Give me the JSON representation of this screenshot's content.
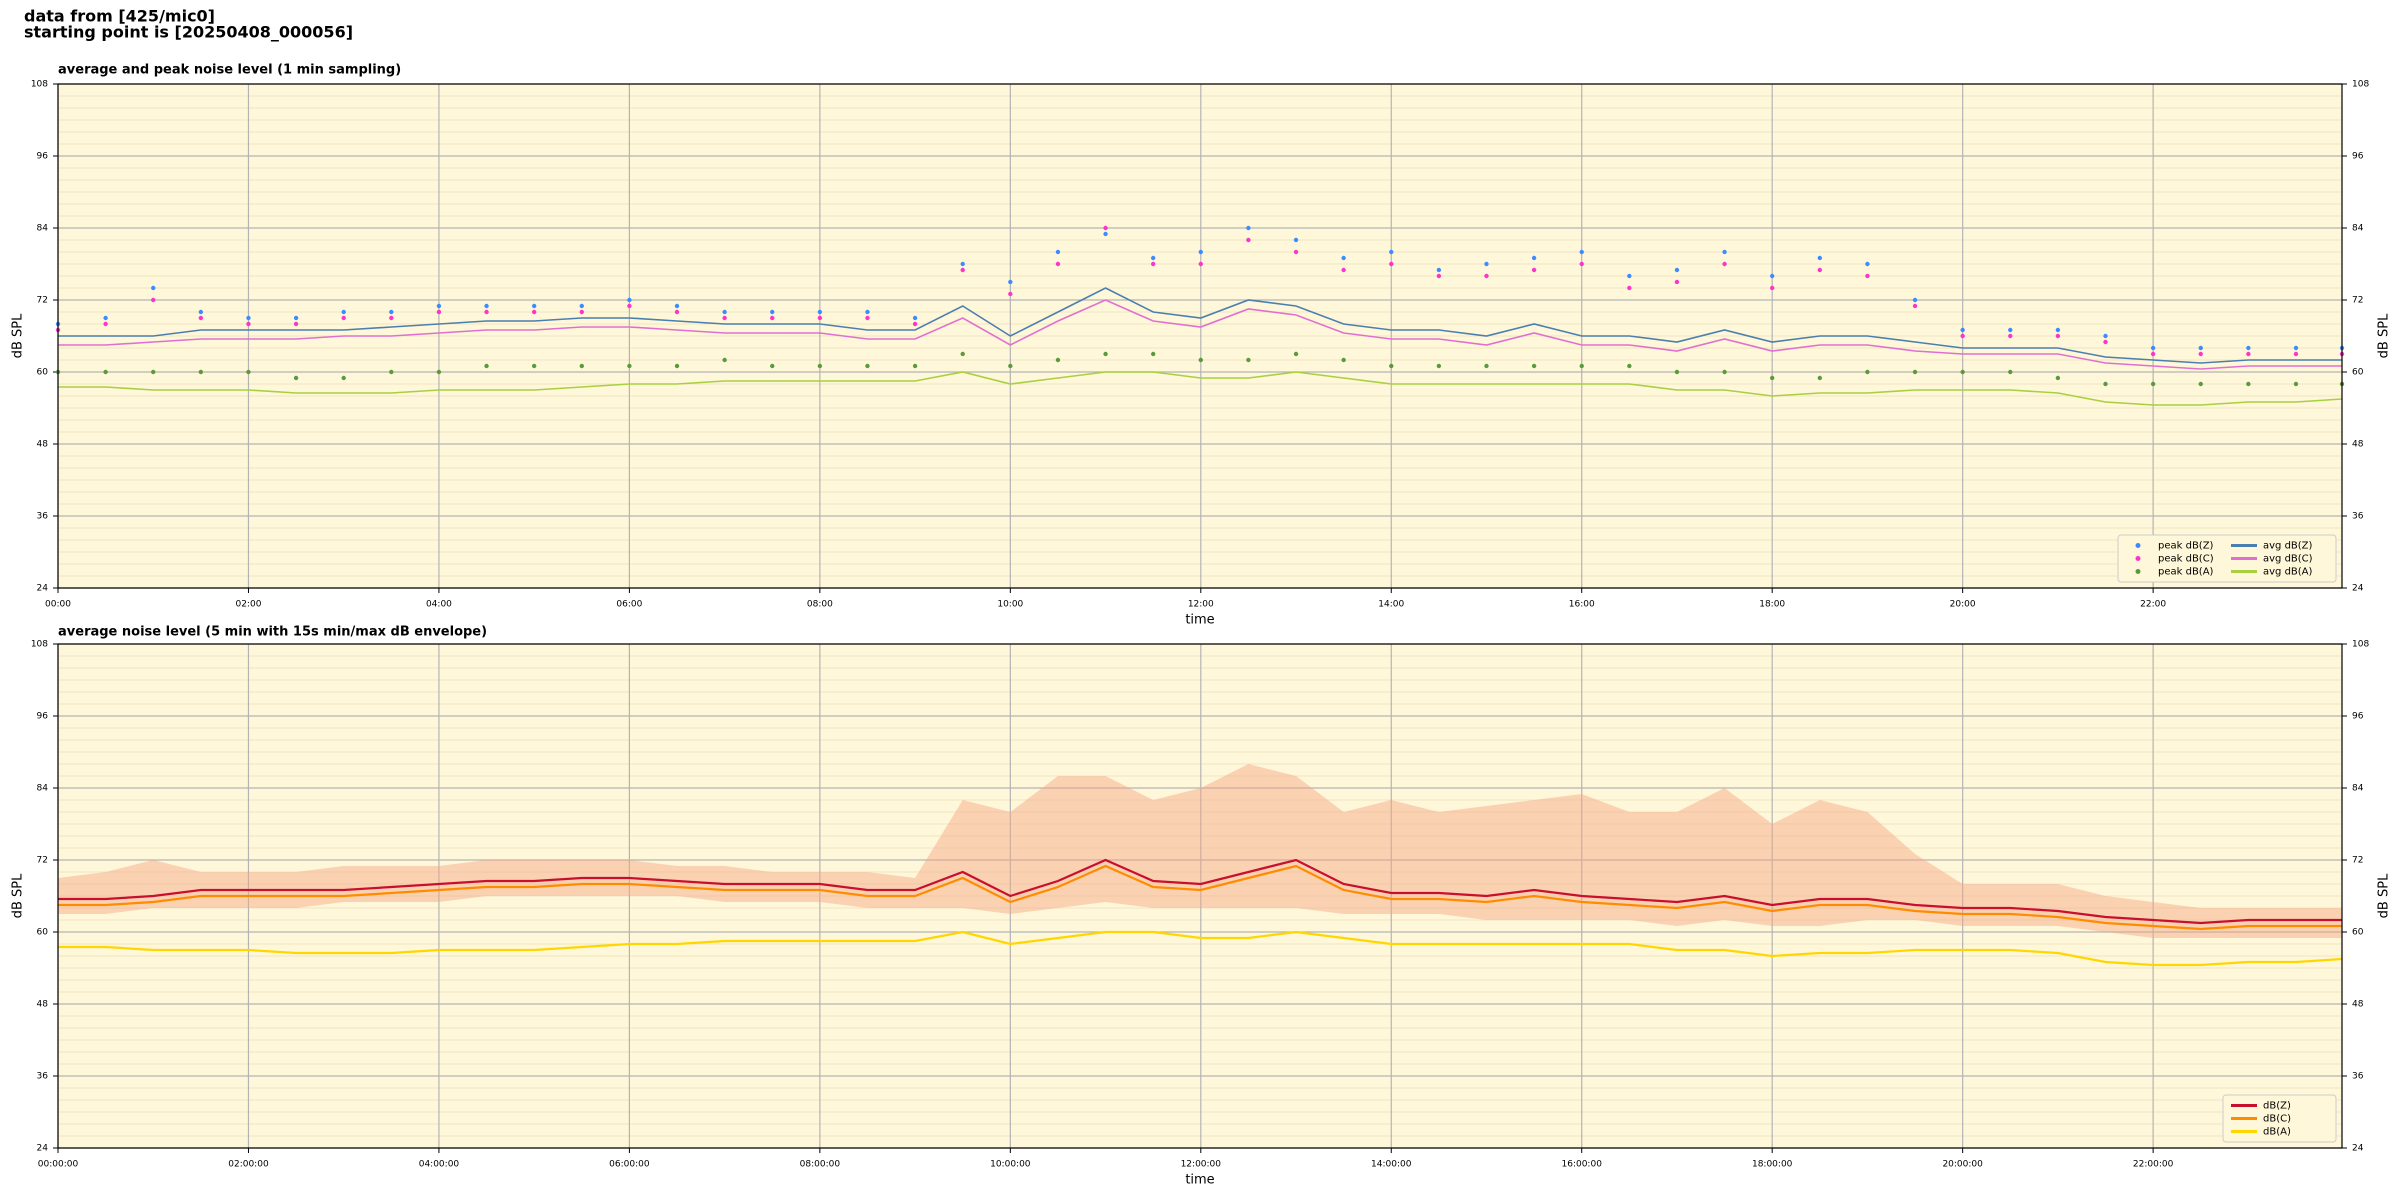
{
  "header": {
    "lines": [
      "data from [425/mic0]",
      "starting point is [20250408_000056]"
    ]
  },
  "chart_data": [
    {
      "type": "line",
      "title": "average and peak noise level (1 min sampling)",
      "xlabel": "time",
      "ylabel": "dB SPL",
      "x": [
        "00:00",
        "00:30",
        "01:00",
        "01:30",
        "02:00",
        "02:30",
        "03:00",
        "03:30",
        "04:00",
        "04:30",
        "05:00",
        "05:30",
        "06:00",
        "06:30",
        "07:00",
        "07:30",
        "08:00",
        "08:30",
        "09:00",
        "09:30",
        "10:00",
        "10:30",
        "11:00",
        "11:30",
        "12:00",
        "12:30",
        "13:00",
        "13:30",
        "14:00",
        "14:30",
        "15:00",
        "15:30",
        "16:00",
        "16:30",
        "17:00",
        "17:30",
        "18:00",
        "18:30",
        "19:00",
        "19:30",
        "20:00",
        "20:30",
        "21:00",
        "21:30",
        "22:00",
        "22:30",
        "23:00",
        "23:30",
        "23:59"
      ],
      "xlim": [
        "00:00",
        "23:59"
      ],
      "xticks": [
        "00:00",
        "02:00",
        "04:00",
        "06:00",
        "08:00",
        "10:00",
        "12:00",
        "14:00",
        "16:00",
        "18:00",
        "20:00",
        "22:00"
      ],
      "ylim": [
        24,
        108
      ],
      "yticks": [
        24,
        36,
        48,
        60,
        72,
        84,
        96,
        108
      ],
      "grid": true,
      "legend": "lower right",
      "legend_columns": 2,
      "series": [
        {
          "name": "peak dB(Z)",
          "style": "scatter",
          "color": "#3c8cff",
          "values": [
            68,
            69,
            74,
            70,
            69,
            69,
            70,
            70,
            71,
            71,
            71,
            71,
            72,
            71,
            70,
            70,
            70,
            70,
            69,
            78,
            75,
            80,
            83,
            79,
            80,
            84,
            82,
            79,
            80,
            77,
            78,
            79,
            80,
            76,
            77,
            80,
            76,
            79,
            78,
            72,
            67,
            67,
            67,
            66,
            64,
            64,
            64,
            64,
            64
          ]
        },
        {
          "name": "peak dB(C)",
          "style": "scatter",
          "color": "#ff33cc",
          "values": [
            67,
            68,
            72,
            69,
            68,
            68,
            69,
            69,
            70,
            70,
            70,
            70,
            71,
            70,
            69,
            69,
            69,
            69,
            68,
            77,
            73,
            78,
            84,
            78,
            78,
            82,
            80,
            77,
            78,
            76,
            76,
            77,
            78,
            74,
            75,
            78,
            74,
            77,
            76,
            71,
            66,
            66,
            66,
            65,
            63,
            63,
            63,
            63,
            63
          ]
        },
        {
          "name": "peak dB(A)",
          "style": "scatter",
          "color": "#5a9a3c",
          "values": [
            60,
            60,
            60,
            60,
            60,
            59,
            59,
            60,
            60,
            61,
            61,
            61,
            61,
            61,
            62,
            61,
            61,
            61,
            61,
            63,
            61,
            62,
            63,
            63,
            62,
            62,
            63,
            62,
            61,
            61,
            61,
            61,
            61,
            61,
            60,
            60,
            59,
            59,
            60,
            60,
            60,
            60,
            59,
            58,
            58,
            58,
            58,
            58,
            58
          ]
        },
        {
          "name": "avg dB(Z)",
          "style": "line",
          "color": "#4a7fb0",
          "values": [
            66,
            66,
            66,
            67,
            67,
            67,
            67,
            67.5,
            68,
            68.5,
            68.5,
            69,
            69,
            68.5,
            68,
            68,
            68,
            67,
            67,
            71,
            66,
            70,
            74,
            70,
            69,
            72,
            71,
            68,
            67,
            67,
            66,
            68,
            66,
            66,
            65,
            67,
            65,
            66,
            66,
            65,
            64,
            64,
            64,
            62.5,
            62,
            61.5,
            62,
            62,
            62
          ]
        },
        {
          "name": "avg dB(C)",
          "style": "line",
          "color": "#e070d0",
          "values": [
            64.5,
            64.5,
            65,
            65.5,
            65.5,
            65.5,
            66,
            66,
            66.5,
            67,
            67,
            67.5,
            67.5,
            67,
            66.5,
            66.5,
            66.5,
            65.5,
            65.5,
            69,
            64.5,
            68.5,
            72,
            68.5,
            67.5,
            70.5,
            69.5,
            66.5,
            65.5,
            65.5,
            64.5,
            66.5,
            64.5,
            64.5,
            63.5,
            65.5,
            63.5,
            64.5,
            64.5,
            63.5,
            63,
            63,
            63,
            61.5,
            61,
            60.5,
            61,
            61,
            61
          ]
        },
        {
          "name": "avg dB(A)",
          "style": "line",
          "color": "#a8d040",
          "values": [
            57.5,
            57.5,
            57,
            57,
            57,
            56.5,
            56.5,
            56.5,
            57,
            57,
            57,
            57.5,
            58,
            58,
            58.5,
            58.5,
            58.5,
            58.5,
            58.5,
            60,
            58,
            59,
            60,
            60,
            59,
            59,
            60,
            59,
            58,
            58,
            58,
            58,
            58,
            58,
            57,
            57,
            56,
            56.5,
            56.5,
            57,
            57,
            57,
            56.5,
            55,
            54.5,
            54.5,
            55,
            55,
            55.5
          ]
        }
      ]
    },
    {
      "type": "line",
      "title": "average noise level (5 min with 15s min/max dB envelope)",
      "xlabel": "time",
      "ylabel": "dB SPL",
      "x": [
        "00:00:00",
        "00:30:00",
        "01:00:00",
        "01:30:00",
        "02:00:00",
        "02:30:00",
        "03:00:00",
        "03:30:00",
        "04:00:00",
        "04:30:00",
        "05:00:00",
        "05:30:00",
        "06:00:00",
        "06:30:00",
        "07:00:00",
        "07:30:00",
        "08:00:00",
        "08:30:00",
        "09:00:00",
        "09:30:00",
        "10:00:00",
        "10:30:00",
        "11:00:00",
        "11:30:00",
        "12:00:00",
        "12:30:00",
        "13:00:00",
        "13:30:00",
        "14:00:00",
        "14:30:00",
        "15:00:00",
        "15:30:00",
        "16:00:00",
        "16:30:00",
        "17:00:00",
        "17:30:00",
        "18:00:00",
        "18:30:00",
        "19:00:00",
        "19:30:00",
        "20:00:00",
        "20:30:00",
        "21:00:00",
        "21:30:00",
        "22:00:00",
        "22:30:00",
        "23:00:00",
        "23:30:00",
        "23:59:00"
      ],
      "xlim": [
        "00:00:00",
        "23:59:00"
      ],
      "xticks": [
        "00:00:00",
        "02:00:00",
        "04:00:00",
        "06:00:00",
        "08:00:00",
        "10:00:00",
        "12:00:00",
        "14:00:00",
        "16:00:00",
        "18:00:00",
        "20:00:00",
        "22:00:00"
      ],
      "ylim": [
        24,
        108
      ],
      "yticks": [
        24,
        36,
        48,
        60,
        72,
        84,
        96,
        108
      ],
      "grid": true,
      "legend": "lower right",
      "legend_columns": 1,
      "envelope": {
        "color": "#f4a582",
        "low": [
          63,
          63,
          64,
          64,
          64,
          64,
          65,
          65,
          65,
          66,
          66,
          66,
          66,
          66,
          65,
          65,
          65,
          64,
          64,
          64,
          63,
          64,
          65,
          64,
          64,
          64,
          64,
          63,
          63,
          63,
          62,
          62,
          62,
          62,
          61,
          62,
          61,
          61,
          62,
          62,
          61,
          61,
          61,
          60,
          59,
          59,
          59,
          59,
          59
        ],
        "high": [
          69,
          70,
          72,
          70,
          70,
          70,
          71,
          71,
          71,
          72,
          72,
          72,
          72,
          71,
          71,
          70,
          70,
          70,
          69,
          82,
          80,
          86,
          86,
          82,
          84,
          88,
          86,
          80,
          82,
          80,
          81,
          82,
          83,
          80,
          80,
          84,
          78,
          82,
          80,
          73,
          68,
          68,
          68,
          66,
          65,
          64,
          64,
          64,
          64
        ]
      },
      "series": [
        {
          "name": "dB(Z)",
          "style": "line",
          "color": "#c8102e",
          "values": [
            65.5,
            65.5,
            66,
            67,
            67,
            67,
            67,
            67.5,
            68,
            68.5,
            68.5,
            69,
            69,
            68.5,
            68,
            68,
            68,
            67,
            67,
            70,
            66,
            68.5,
            72,
            68.5,
            68,
            70,
            72,
            68,
            66.5,
            66.5,
            66,
            67,
            66,
            65.5,
            65,
            66,
            64.5,
            65.5,
            65.5,
            64.5,
            64,
            64,
            63.5,
            62.5,
            62,
            61.5,
            62,
            62,
            62
          ]
        },
        {
          "name": "dB(C)",
          "style": "line",
          "color": "#ff8c00",
          "values": [
            64.5,
            64.5,
            65,
            66,
            66,
            66,
            66,
            66.5,
            67,
            67.5,
            67.5,
            68,
            68,
            67.5,
            67,
            67,
            67,
            66,
            66,
            69,
            65,
            67.5,
            71,
            67.5,
            67,
            69,
            71,
            67,
            65.5,
            65.5,
            65,
            66,
            65,
            64.5,
            64,
            65,
            63.5,
            64.5,
            64.5,
            63.5,
            63,
            63,
            62.5,
            61.5,
            61,
            60.5,
            61,
            61,
            61
          ]
        },
        {
          "name": "dB(A)",
          "style": "line",
          "color": "#ffd700",
          "values": [
            57.5,
            57.5,
            57,
            57,
            57,
            56.5,
            56.5,
            56.5,
            57,
            57,
            57,
            57.5,
            58,
            58,
            58.5,
            58.5,
            58.5,
            58.5,
            58.5,
            60,
            58,
            59,
            60,
            60,
            59,
            59,
            60,
            59,
            58,
            58,
            58,
            58,
            58,
            58,
            57,
            57,
            56,
            56.5,
            56.5,
            57,
            57,
            57,
            56.5,
            55,
            54.5,
            54.5,
            55,
            55,
            55.5
          ]
        }
      ]
    }
  ]
}
